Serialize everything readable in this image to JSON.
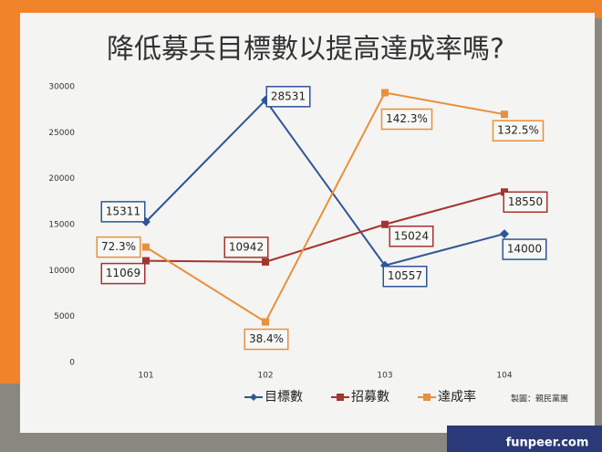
{
  "chart_data": {
    "type": "line",
    "title": "降低募兵目標數以提高達成率嗎?",
    "categories": [
      "101",
      "102",
      "103",
      "104"
    ],
    "series": [
      {
        "name": "目標數",
        "color": "#2f5597",
        "values": [
          15311,
          28531,
          10557,
          14000
        ]
      },
      {
        "name": "招募數",
        "color": "#a5342e",
        "values": [
          11069,
          10942,
          15024,
          18550
        ]
      },
      {
        "name": "達成率",
        "color": "#e8903c",
        "axis": "y2",
        "values": [
          72.3,
          38.4,
          142.3,
          132.5
        ],
        "value_labels": [
          "72.3%",
          "38.4%",
          "142.3%",
          "132.5%"
        ]
      }
    ],
    "ylim": [
      0,
      30000
    ],
    "yticks": [
      0,
      5000,
      10000,
      15000,
      20000,
      25000,
      30000
    ],
    "y2lim": [
      20,
      145
    ],
    "legend": "bottom",
    "credit": "製圖：親民黨團",
    "watermark": "funpeer.com"
  }
}
